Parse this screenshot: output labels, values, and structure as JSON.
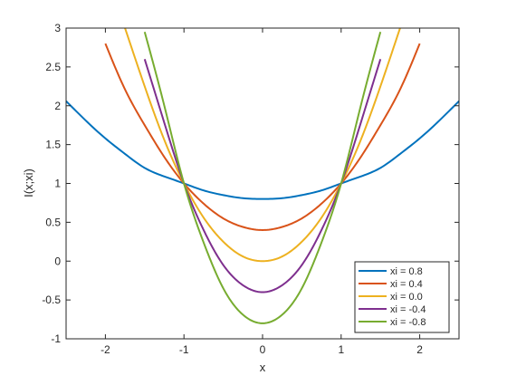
{
  "chart_data": {
    "type": "line",
    "xlabel": "x",
    "ylabel": "I(x;xi)",
    "xlim": [
      -2.5,
      2.5
    ],
    "ylim": [
      -1,
      3
    ],
    "xticks": [
      -2,
      -1,
      0,
      1,
      2
    ],
    "xtick_labels": [
      "-2",
      "-1",
      "0",
      "1",
      "2"
    ],
    "yticks": [
      -1,
      -0.5,
      0,
      0.5,
      1,
      1.5,
      2,
      2.5,
      3
    ],
    "ytick_labels": [
      "-1",
      "-0.5",
      "0",
      "0.5",
      "1",
      "1.5",
      "2",
      "2.5",
      "3"
    ],
    "grid": false,
    "legend_position": "bottom-right",
    "x": [
      -2.5,
      -2.25,
      -2.0,
      -1.75,
      -1.5,
      -1.25,
      -1.0,
      -0.75,
      -0.5,
      -0.25,
      0.0,
      0.25,
      0.5,
      0.75,
      1.0,
      1.25,
      1.5,
      1.75,
      2.0,
      2.25,
      2.5
    ],
    "series": [
      {
        "name": "xi = 0.8",
        "color": "#0072bd",
        "values": [
          2.06,
          1.81,
          1.58,
          1.38,
          1.2,
          1.09,
          1.0,
          0.91,
          0.85,
          0.81,
          0.8,
          0.81,
          0.85,
          0.91,
          1.0,
          1.09,
          1.2,
          1.38,
          1.58,
          1.81,
          2.06
        ]
      },
      {
        "name": "xi = 0.4",
        "color": "#d95319",
        "values": [
          null,
          null,
          2.8,
          2.21,
          1.75,
          1.34,
          1.0,
          0.74,
          0.55,
          0.44,
          0.4,
          0.44,
          0.55,
          0.74,
          1.0,
          1.34,
          1.75,
          2.21,
          2.8,
          null,
          null
        ]
      },
      {
        "name": "xi = 0.0",
        "color": "#edb120",
        "values": [
          null,
          null,
          null,
          3.0,
          2.25,
          1.56,
          1.0,
          0.56,
          0.25,
          0.06,
          0.0,
          0.06,
          0.25,
          0.56,
          1.0,
          1.56,
          2.25,
          3.0,
          null,
          null,
          null
        ]
      },
      {
        "name": "xi = -0.4",
        "color": "#7e2f8e",
        "values": [
          null,
          null,
          null,
          null,
          2.6,
          1.78,
          1.0,
          0.4,
          -0.05,
          -0.31,
          -0.4,
          -0.31,
          -0.05,
          0.4,
          1.0,
          1.78,
          2.6,
          null,
          null,
          null,
          null
        ]
      },
      {
        "name": "xi = -0.8",
        "color": "#77ac30",
        "values": [
          null,
          null,
          null,
          null,
          2.95,
          2.0,
          1.0,
          0.24,
          -0.35,
          -0.69,
          -0.8,
          -0.69,
          -0.35,
          0.24,
          1.0,
          2.0,
          2.95,
          null,
          null,
          null,
          null
        ]
      }
    ]
  }
}
